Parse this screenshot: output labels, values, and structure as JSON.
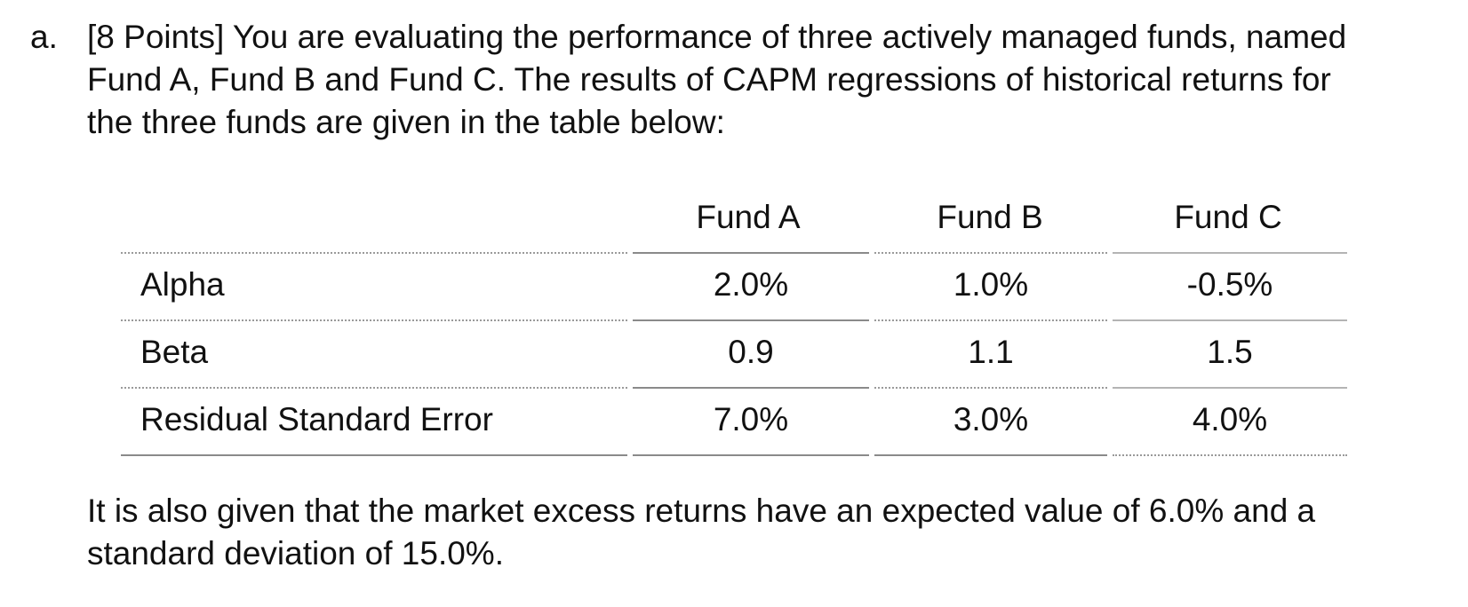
{
  "question": {
    "marker": "a.",
    "lines": [
      "[8 Points] You are evaluating the performance of three actively managed funds, named",
      "Fund A, Fund B and Fund C.  The results of CAPM regressions of historical returns for",
      "the three funds are given in the table below:"
    ]
  },
  "table": {
    "columns": [
      "",
      "Fund A",
      "Fund B",
      "Fund C"
    ],
    "rows": [
      {
        "label": "Alpha",
        "values": [
          "2.0%",
          "1.0%",
          "-0.5%"
        ]
      },
      {
        "label": "Beta",
        "values": [
          "0.9",
          "1.1",
          "1.5"
        ]
      },
      {
        "label": "Residual Standard Error",
        "values": [
          "7.0%",
          "3.0%",
          "4.0%"
        ]
      }
    ]
  },
  "note": {
    "lines": [
      "It is also given that the market excess returns have an expected value of 6.0% and a",
      "standard deviation of 15.0%."
    ]
  }
}
